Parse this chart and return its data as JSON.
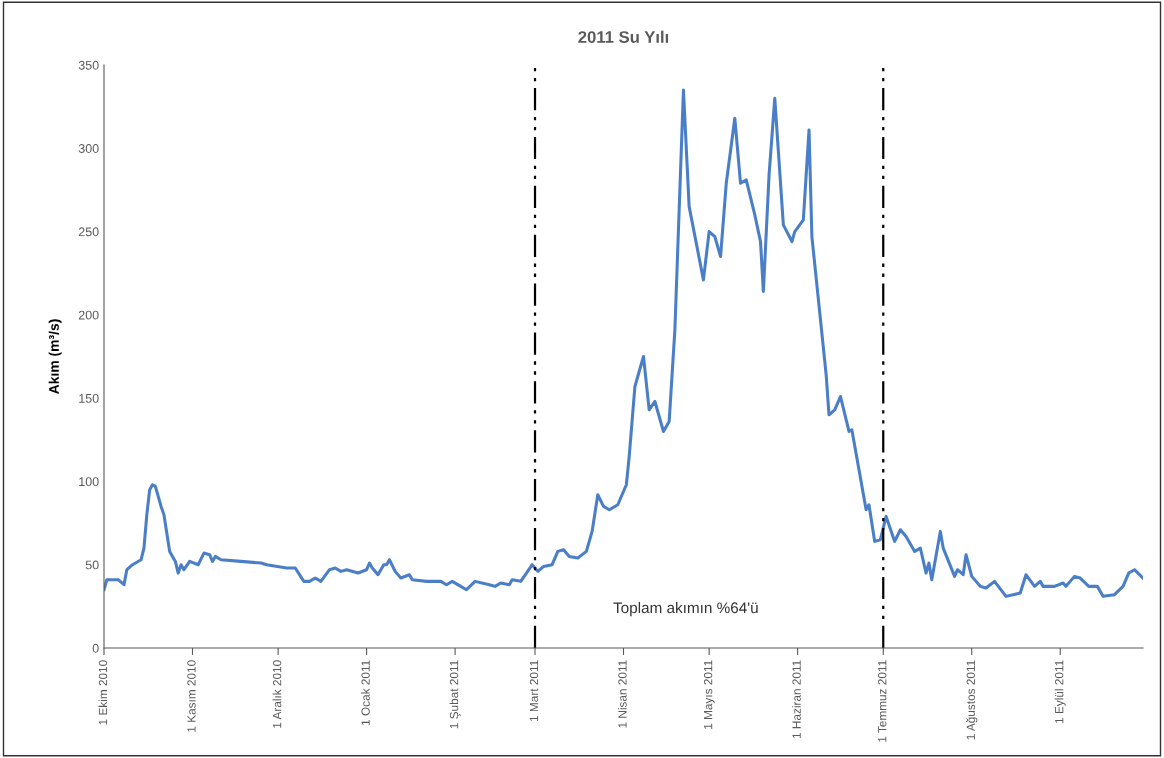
{
  "chart_data": {
    "type": "line",
    "title": "2011 Su Yılı",
    "ylabel": "Akım (m³/s)",
    "xlim": [
      "2010-10-01",
      "2011-09-30"
    ],
    "xticks": [
      {
        "value": "2010-10-01",
        "label": "1 Ekim 2010"
      },
      {
        "value": "2010-11-01",
        "label": "1 Kasım 2010"
      },
      {
        "value": "2010-12-01",
        "label": "1 Aralık 2010"
      },
      {
        "value": "2011-01-01",
        "label": "1 Ocak 2011"
      },
      {
        "value": "2011-02-01",
        "label": "1 Şubat 2011"
      },
      {
        "value": "2011-03-01",
        "label": "1 Mart 2011"
      },
      {
        "value": "2011-04-01",
        "label": "1 Nisan 2011"
      },
      {
        "value": "2011-05-01",
        "label": "1 Mayıs 2011"
      },
      {
        "value": "2011-06-01",
        "label": "1 Haziran 2011"
      },
      {
        "value": "2011-07-01",
        "label": "1 Temmuz 2011"
      },
      {
        "value": "2011-08-01",
        "label": "1 Ağustos 2011"
      },
      {
        "value": "2011-09-01",
        "label": "1 Eylül 2011"
      }
    ],
    "ylim": [
      0,
      350
    ],
    "yticks": [
      0,
      50,
      100,
      150,
      200,
      250,
      300,
      350
    ],
    "grid": false,
    "legend": false,
    "ref_lines": [
      {
        "axis": "x",
        "value": "2011-03-01",
        "color": "#000000",
        "line_style": "dashdot"
      },
      {
        "axis": "x",
        "value": "2011-07-01",
        "color": "#000000",
        "line_style": "dashdot"
      }
    ],
    "annotations": [
      "Toplam akımın %64'ü"
    ],
    "series": [
      {
        "color": "#4a7fc8",
        "x": [
          "2010-10-01",
          "2010-10-02",
          "2010-10-06",
          "2010-10-08",
          "2010-10-09",
          "2010-10-11",
          "2010-10-14",
          "2010-10-15",
          "2010-10-16",
          "2010-10-17",
          "2010-10-18",
          "2010-10-19",
          "2010-10-21",
          "2010-10-22",
          "2010-10-24",
          "2010-10-26",
          "2010-10-27",
          "2010-10-28",
          "2010-10-29",
          "2010-10-31",
          "2010-11-03",
          "2010-11-05",
          "2010-11-07",
          "2010-11-08",
          "2010-11-09",
          "2010-11-11",
          "2010-11-18",
          "2010-11-25",
          "2010-11-27",
          "2010-12-04",
          "2010-12-07",
          "2010-12-10",
          "2010-12-12",
          "2010-12-14",
          "2010-12-16",
          "2010-12-19",
          "2010-12-21",
          "2010-12-23",
          "2010-12-25",
          "2010-12-29",
          "2011-01-01",
          "2011-01-02",
          "2011-01-03",
          "2011-01-05",
          "2011-01-07",
          "2011-01-08",
          "2011-01-09",
          "2011-01-11",
          "2011-01-13",
          "2011-01-16",
          "2011-01-17",
          "2011-01-22",
          "2011-01-27",
          "2011-01-29",
          "2011-01-31",
          "2011-02-03",
          "2011-02-05",
          "2011-02-08",
          "2011-02-13",
          "2011-02-15",
          "2011-02-17",
          "2011-02-20",
          "2011-02-21",
          "2011-02-24",
          "2011-02-26",
          "2011-02-28",
          "2011-03-02",
          "2011-03-04",
          "2011-03-07",
          "2011-03-09",
          "2011-03-11",
          "2011-03-13",
          "2011-03-16",
          "2011-03-19",
          "2011-03-21",
          "2011-03-23",
          "2011-03-25",
          "2011-03-27",
          "2011-03-30",
          "2011-04-02",
          "2011-04-03",
          "2011-04-05",
          "2011-04-08",
          "2011-04-10",
          "2011-04-12",
          "2011-04-15",
          "2011-04-17",
          "2011-04-19",
          "2011-04-22",
          "2011-04-24",
          "2011-04-29",
          "2011-05-01",
          "2011-05-03",
          "2011-05-05",
          "2011-05-07",
          "2011-05-10",
          "2011-05-12",
          "2011-05-14",
          "2011-05-17",
          "2011-05-19",
          "2011-05-20",
          "2011-05-22",
          "2011-05-24",
          "2011-05-27",
          "2011-05-30",
          "2011-05-31",
          "2011-06-03",
          "2011-06-05",
          "2011-06-06",
          "2011-06-11",
          "2011-06-12",
          "2011-06-14",
          "2011-06-16",
          "2011-06-19",
          "2011-06-20",
          "2011-06-25",
          "2011-06-26",
          "2011-06-28",
          "2011-06-30",
          "2011-07-02",
          "2011-07-05",
          "2011-07-07",
          "2011-07-09",
          "2011-07-12",
          "2011-07-14",
          "2011-07-16",
          "2011-07-17",
          "2011-07-18",
          "2011-07-21",
          "2011-07-22",
          "2011-07-26",
          "2011-07-27",
          "2011-07-29",
          "2011-07-30",
          "2011-08-01",
          "2011-08-04",
          "2011-08-06",
          "2011-08-09",
          "2011-08-13",
          "2011-08-18",
          "2011-08-20",
          "2011-08-23",
          "2011-08-25",
          "2011-08-26",
          "2011-08-30",
          "2011-09-02",
          "2011-09-03",
          "2011-09-06",
          "2011-09-08",
          "2011-09-11",
          "2011-09-14",
          "2011-09-16",
          "2011-09-20",
          "2011-09-23",
          "2011-09-25",
          "2011-09-27",
          "2011-09-30"
        ],
        "values": [
          35,
          41,
          41,
          38,
          47,
          50,
          53,
          60,
          80,
          95,
          98,
          97,
          85,
          80,
          58,
          52,
          45,
          50,
          47,
          52,
          50,
          57,
          56,
          52,
          55,
          53,
          52,
          51,
          50,
          48,
          48,
          40,
          40,
          42,
          40,
          47,
          48,
          46,
          47,
          45,
          47,
          51,
          48,
          44,
          50,
          50,
          53,
          46,
          42,
          44,
          41,
          40,
          40,
          38,
          40,
          37,
          35,
          40,
          38,
          37,
          39,
          38,
          41,
          40,
          45,
          50,
          46,
          49,
          50,
          58,
          59,
          55,
          54,
          58,
          70,
          92,
          85,
          83,
          86,
          98,
          115,
          157,
          175,
          143,
          148,
          130,
          136,
          191,
          335,
          265,
          221,
          250,
          247,
          235,
          279,
          318,
          279,
          281,
          260,
          244,
          214,
          284,
          330,
          254,
          244,
          250,
          257,
          311,
          247,
          164,
          140,
          143,
          151,
          130,
          131,
          83,
          86,
          64,
          65,
          79,
          64,
          71,
          67,
          58,
          60,
          45,
          51,
          41,
          70,
          60,
          43,
          47,
          44,
          56,
          43,
          37,
          36,
          40,
          31,
          33,
          44,
          37,
          40,
          37,
          37,
          39,
          37,
          43,
          42,
          37,
          37,
          31,
          32,
          37,
          45,
          47,
          42
        ]
      }
    ]
  }
}
